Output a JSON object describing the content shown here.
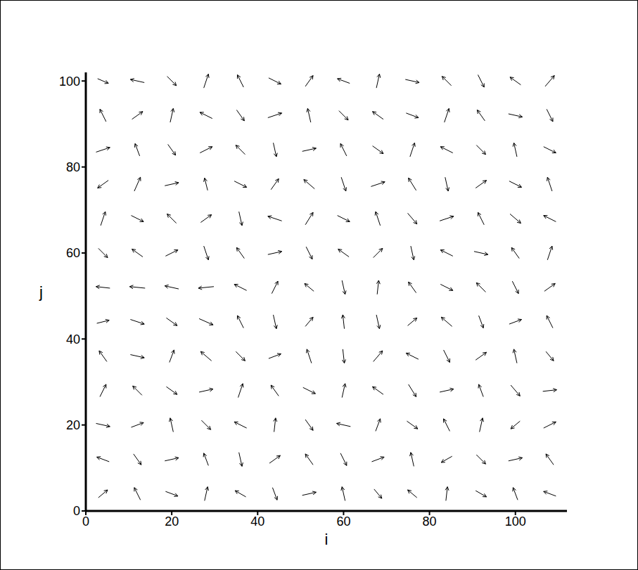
{
  "chart_data": {
    "type": "vector_field",
    "x_label": "i",
    "y_label": "j",
    "xlim": [
      0,
      112
    ],
    "ylim": [
      0,
      102
    ],
    "xticks": [
      0,
      20,
      40,
      60,
      80,
      100
    ],
    "yticks": [
      0,
      20,
      40,
      60,
      80,
      100
    ],
    "grid": false,
    "color": "#000000",
    "grid_x": [
      4,
      12,
      20,
      28,
      36,
      44,
      52,
      60,
      68,
      76,
      84,
      92,
      100,
      108
    ],
    "grid_y": [
      4,
      12,
      20,
      28,
      36,
      44,
      52,
      60,
      68,
      76,
      84,
      92,
      100
    ],
    "u": [
      [
        0.6,
        -0.4,
        0.8,
        0.2,
        -0.7,
        0.3,
        0.9,
        -0.2,
        0.5,
        -0.6,
        0.1,
        0.7,
        -0.3,
        -0.8
      ],
      [
        -0.8,
        0.5,
        0.9,
        -0.3,
        0.2,
        0.7,
        -0.5,
        0.4,
        0.8,
        -0.2,
        -0.7,
        0.6,
        0.9,
        -0.5
      ],
      [
        0.9,
        0.8,
        -0.2,
        0.6,
        -0.8,
        0.1,
        0.5,
        -0.9,
        0.3,
        0.7,
        -0.4,
        0.2,
        -0.6,
        0.8
      ],
      [
        0.4,
        -0.6,
        0.7,
        0.9,
        0.3,
        -0.5,
        0.8,
        0.2,
        -0.7,
        0.5,
        0.9,
        -0.3,
        0.6,
        0.9
      ],
      [
        -0.5,
        0.9,
        0.3,
        -0.7,
        0.6,
        0.8,
        -0.3,
        0.1,
        0.6,
        -0.8,
        0.4,
        0.7,
        -0.2,
        0.5
      ],
      [
        0.8,
        0.9,
        0.7,
        0.9,
        -0.4,
        0.2,
        0.5,
        -0.1,
        0.2,
        0.6,
        -0.7,
        0.3,
        0.8,
        -0.4
      ],
      [
        -0.9,
        -1.0,
        -0.9,
        -1.0,
        -0.8,
        0.4,
        -0.6,
        0.2,
        0.1,
        -0.5,
        0.8,
        -0.6,
        0.4,
        0.7
      ],
      [
        0.6,
        -0.7,
        0.8,
        0.3,
        -0.5,
        0.9,
        0.4,
        -0.7,
        0.6,
        0.2,
        -0.8,
        0.9,
        -0.5,
        0.3
      ],
      [
        0.3,
        0.8,
        -0.6,
        0.7,
        0.2,
        -0.9,
        0.5,
        0.8,
        -0.3,
        0.6,
        0.9,
        -0.4,
        0.7,
        -0.8
      ],
      [
        -0.7,
        0.4,
        0.9,
        -0.2,
        0.8,
        0.5,
        -0.7,
        0.3,
        0.9,
        -0.5,
        0.2,
        0.7,
        0.8,
        -0.3
      ],
      [
        0.9,
        -0.3,
        0.5,
        0.8,
        -0.6,
        0.2,
        0.9,
        -0.4,
        0.7,
        0.3,
        -0.8,
        0.6,
        -0.2,
        0.8
      ],
      [
        -0.4,
        0.7,
        0.2,
        -0.8,
        0.5,
        0.9,
        -0.2,
        0.6,
        -0.7,
        0.8,
        0.3,
        -0.5,
        0.9,
        0.4
      ],
      [
        0.7,
        -0.9,
        0.6,
        0.3,
        -0.4,
        0.8,
        0.5,
        -0.8,
        0.2,
        0.9,
        -0.6,
        0.4,
        -0.7,
        0.6
      ]
    ],
    "v": [
      [
        0.5,
        0.8,
        -0.3,
        0.9,
        0.4,
        -0.8,
        0.2,
        0.9,
        -0.6,
        0.5,
        0.9,
        -0.4,
        0.8,
        0.3
      ],
      [
        0.3,
        -0.7,
        0.2,
        0.8,
        -0.9,
        0.5,
        0.7,
        -0.8,
        0.3,
        0.9,
        -0.4,
        -0.6,
        0.2,
        0.7
      ],
      [
        -0.2,
        0.3,
        0.9,
        -0.6,
        0.4,
        0.9,
        -0.7,
        0.2,
        0.8,
        -0.5,
        0.8,
        0.9,
        -0.5,
        0.4
      ],
      [
        0.8,
        0.6,
        -0.5,
        0.2,
        0.9,
        0.7,
        -0.4,
        0.9,
        0.5,
        -0.8,
        0.2,
        0.8,
        -0.7,
        0.1
      ],
      [
        0.7,
        -0.2,
        0.8,
        0.6,
        -0.6,
        0.3,
        0.9,
        -0.9,
        0.7,
        0.4,
        -0.8,
        0.5,
        0.9,
        -0.6
      ],
      [
        0.2,
        -0.3,
        -0.5,
        -0.4,
        0.8,
        -0.9,
        0.6,
        0.9,
        -0.9,
        0.5,
        0.6,
        -0.8,
        0.3,
        0.8
      ],
      [
        0.1,
        0.1,
        0.2,
        -0.1,
        0.4,
        0.8,
        0.5,
        -0.9,
        0.9,
        0.7,
        -0.4,
        0.6,
        -0.8,
        0.5
      ],
      [
        -0.6,
        0.5,
        0.4,
        -0.9,
        0.7,
        0.2,
        -0.8,
        0.5,
        0.6,
        -0.9,
        0.4,
        -0.2,
        0.7,
        0.9
      ],
      [
        0.9,
        -0.4,
        0.6,
        0.5,
        -0.9,
        0.3,
        0.8,
        -0.4,
        0.9,
        -0.7,
        0.3,
        0.8,
        -0.6,
        0.4
      ],
      [
        -0.5,
        0.9,
        0.2,
        0.8,
        -0.4,
        0.7,
        0.6,
        -0.9,
        0.3,
        0.8,
        -0.9,
        0.5,
        -0.4,
        0.9
      ],
      [
        0.3,
        0.8,
        -0.7,
        0.4,
        0.6,
        -0.9,
        0.2,
        0.8,
        -0.5,
        0.9,
        0.4,
        -0.6,
        0.9,
        -0.4
      ],
      [
        0.8,
        0.5,
        0.9,
        0.4,
        -0.7,
        0.3,
        0.9,
        -0.6,
        0.5,
        -0.3,
        0.9,
        0.7,
        -0.2,
        -0.8
      ],
      [
        -0.3,
        0.2,
        -0.6,
        0.9,
        0.8,
        -0.4,
        0.7,
        0.3,
        0.9,
        -0.2,
        0.6,
        -0.8,
        0.5,
        0.7
      ]
    ]
  }
}
